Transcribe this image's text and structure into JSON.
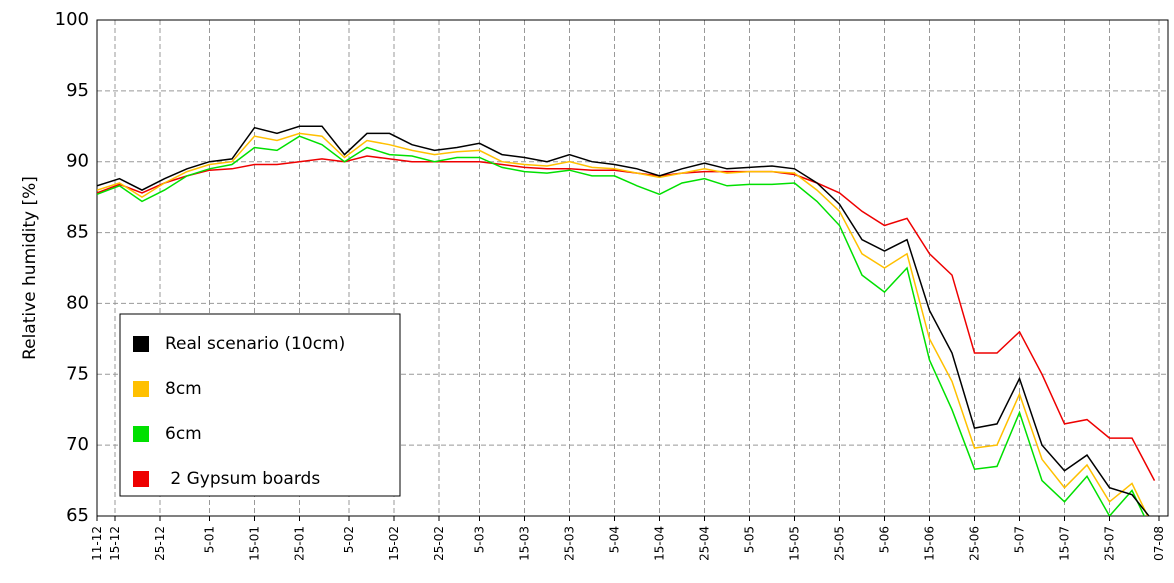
{
  "chart_data": {
    "type": "line",
    "y_label": "Relative humidity [%]",
    "x": [
      0,
      5,
      10,
      15,
      20,
      25,
      30,
      35,
      40,
      45,
      50,
      55,
      60,
      65,
      70,
      75,
      80,
      85,
      90,
      95,
      100,
      105,
      110,
      115,
      120,
      125,
      130,
      135,
      140,
      145,
      150,
      155,
      160,
      165,
      170,
      175,
      180,
      185,
      190,
      195,
      200,
      205,
      210,
      215,
      220,
      225,
      230,
      235
    ],
    "xlim": [
      0,
      238
    ],
    "xticks": [
      {
        "value": 0,
        "label": "11-12"
      },
      {
        "value": 4,
        "label": "15-12"
      },
      {
        "value": 14,
        "label": "25-12"
      },
      {
        "value": 25,
        "label": "5-01"
      },
      {
        "value": 35,
        "label": "15-01"
      },
      {
        "value": 45,
        "label": "25-01"
      },
      {
        "value": 56,
        "label": "5-02"
      },
      {
        "value": 66,
        "label": "15-02"
      },
      {
        "value": 76,
        "label": "25-02"
      },
      {
        "value": 85,
        "label": "5-03"
      },
      {
        "value": 95,
        "label": "15-03"
      },
      {
        "value": 105,
        "label": "25-03"
      },
      {
        "value": 115,
        "label": "5-04"
      },
      {
        "value": 125,
        "label": "15-04"
      },
      {
        "value": 135,
        "label": "25-04"
      },
      {
        "value": 145,
        "label": "5-05"
      },
      {
        "value": 155,
        "label": "15-05"
      },
      {
        "value": 165,
        "label": "25-05"
      },
      {
        "value": 175,
        "label": "5-06"
      },
      {
        "value": 185,
        "label": "15-06"
      },
      {
        "value": 195,
        "label": "25-06"
      },
      {
        "value": 205,
        "label": "5-07"
      },
      {
        "value": 215,
        "label": "15-07"
      },
      {
        "value": 225,
        "label": "25-07"
      },
      {
        "value": 236,
        "label": "07-08"
      }
    ],
    "ylim": [
      65,
      100
    ],
    "yticks": [
      65,
      70,
      75,
      80,
      85,
      90,
      95,
      100
    ],
    "grid": true,
    "legend": "lower left",
    "series": [
      {
        "name": "Real scenario (10cm)",
        "color": "#000000",
        "values": [
          88.3,
          88.8,
          88.0,
          88.8,
          89.5,
          90.0,
          90.2,
          92.4,
          92.0,
          92.5,
          92.5,
          90.5,
          92.0,
          92.0,
          91.2,
          90.8,
          91.0,
          91.3,
          90.5,
          90.3,
          90.0,
          90.5,
          90.0,
          89.8,
          89.5,
          89.0,
          89.5,
          89.9,
          89.5,
          89.6,
          89.7,
          89.5,
          88.5,
          87.0,
          84.5,
          83.7,
          84.5,
          79.5,
          76.5,
          71.2,
          71.5,
          74.7,
          70.0,
          68.2,
          69.3,
          67.0,
          66.5,
          64.5
        ]
      },
      {
        "name": "8cm",
        "color": "#ffc000",
        "values": [
          88.0,
          88.5,
          87.5,
          88.5,
          89.3,
          89.8,
          90.0,
          91.8,
          91.5,
          92.0,
          91.8,
          90.3,
          91.5,
          91.2,
          90.8,
          90.5,
          90.7,
          90.8,
          90.0,
          89.8,
          89.7,
          90.0,
          89.6,
          89.5,
          89.2,
          88.9,
          89.2,
          89.5,
          89.2,
          89.3,
          89.3,
          89.2,
          88.0,
          86.5,
          83.5,
          82.5,
          83.5,
          77.5,
          74.5,
          69.8,
          70.0,
          73.6,
          69.0,
          67.0,
          68.6,
          66.0,
          67.3,
          64.0
        ]
      },
      {
        "name": "6cm",
        "color": "#00e000",
        "values": [
          87.7,
          88.3,
          87.2,
          88.0,
          89.0,
          89.5,
          89.8,
          91.0,
          90.8,
          91.8,
          91.2,
          90.0,
          91.0,
          90.5,
          90.4,
          90.0,
          90.3,
          90.3,
          89.6,
          89.3,
          89.2,
          89.4,
          89.0,
          89.0,
          88.3,
          87.7,
          88.5,
          88.8,
          88.3,
          88.4,
          88.4,
          88.5,
          87.2,
          85.5,
          82.0,
          80.8,
          82.5,
          76.0,
          72.5,
          68.3,
          68.5,
          72.3,
          67.5,
          66.0,
          67.8,
          65.0,
          66.8,
          63.5
        ]
      },
      {
        "name": " 2 Gypsum boards",
        "color": "#ee0000",
        "values": [
          87.8,
          88.4,
          87.8,
          88.5,
          89.0,
          89.4,
          89.5,
          89.8,
          89.8,
          90.0,
          90.2,
          90.0,
          90.4,
          90.2,
          90.0,
          90.0,
          90.0,
          90.0,
          89.8,
          89.6,
          89.5,
          89.5,
          89.4,
          89.4,
          89.2,
          89.0,
          89.2,
          89.3,
          89.3,
          89.3,
          89.3,
          89.1,
          88.5,
          87.8,
          86.5,
          85.5,
          86.0,
          83.5,
          82.0,
          76.5,
          76.5,
          78.0,
          75.0,
          71.5,
          71.8,
          70.5,
          70.5,
          67.5
        ]
      }
    ]
  }
}
